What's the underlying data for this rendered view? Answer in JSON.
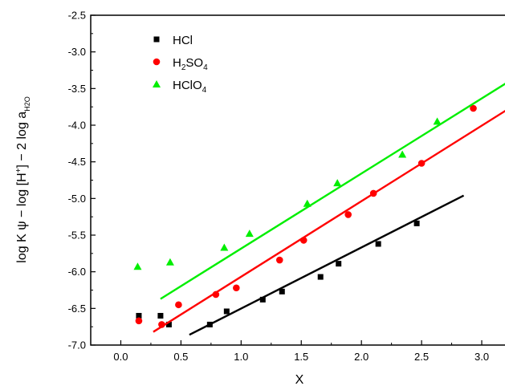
{
  "chart_data": {
    "type": "scatter",
    "xlabel": "X",
    "ylabel_parts": {
      "main": "log K ψ − log [H",
      "sup": "+",
      "mid": "] − 2 log a",
      "sub": "H2O"
    },
    "xlim": [
      -0.25,
      3.2
    ],
    "ylim": [
      -7.0,
      -2.5
    ],
    "x_ticks": [
      0.0,
      0.5,
      1.0,
      1.5,
      2.0,
      2.5,
      3.0
    ],
    "x_tick_labels": [
      "0.0",
      "0.5",
      "1.0",
      "1.5",
      "2.0",
      "2.5",
      "3.0"
    ],
    "y_ticks": [
      -7.0,
      -6.5,
      -6.0,
      -5.5,
      -5.0,
      -4.5,
      -4.0,
      -3.5,
      -3.0,
      -2.5
    ],
    "y_tick_labels": [
      "-7.0",
      "-6.5",
      "-6.0",
      "-5.5",
      "-5.0",
      "-4.5",
      "-4.0",
      "-3.5",
      "-3.0",
      "-2.5"
    ],
    "legend_position": "top-left",
    "series": [
      {
        "name": "HCl",
        "name_parts": [
          {
            "t": "HCl"
          }
        ],
        "marker": "square",
        "color": "#000000",
        "points": [
          [
            0.15,
            -6.6
          ],
          [
            0.33,
            -6.6
          ],
          [
            0.4,
            -6.72
          ],
          [
            0.74,
            -6.72
          ],
          [
            0.88,
            -6.54
          ],
          [
            1.18,
            -6.38
          ],
          [
            1.34,
            -6.27
          ],
          [
            1.66,
            -6.07
          ],
          [
            1.81,
            -5.89
          ],
          [
            2.14,
            -5.62
          ],
          [
            2.46,
            -5.34
          ]
        ],
        "fit_line": [
          [
            0.57,
            -6.86
          ],
          [
            2.85,
            -4.96
          ]
        ]
      },
      {
        "name": "H2SO4",
        "name_parts": [
          {
            "t": "H"
          },
          {
            "t": "2",
            "sub": true
          },
          {
            "t": "SO"
          },
          {
            "t": "4",
            "sub": true
          }
        ],
        "marker": "circle",
        "color": "#ff0000",
        "points": [
          [
            0.15,
            -6.67
          ],
          [
            0.34,
            -6.72
          ],
          [
            0.48,
            -6.45
          ],
          [
            0.79,
            -6.31
          ],
          [
            0.96,
            -6.22
          ],
          [
            1.32,
            -5.84
          ],
          [
            1.52,
            -5.57
          ],
          [
            1.89,
            -5.22
          ],
          [
            2.1,
            -4.93
          ],
          [
            2.5,
            -4.52
          ],
          [
            2.93,
            -3.77
          ]
        ],
        "fit_line": [
          [
            0.27,
            -6.82
          ],
          [
            3.2,
            -3.8
          ]
        ]
      },
      {
        "name": "HClO4",
        "name_parts": [
          {
            "t": "HClO"
          },
          {
            "t": "4",
            "sub": true
          }
        ],
        "marker": "triangle",
        "color": "#00ee00",
        "points": [
          [
            0.14,
            -5.93
          ],
          [
            0.41,
            -5.87
          ],
          [
            0.86,
            -5.67
          ],
          [
            1.07,
            -5.48
          ],
          [
            1.55,
            -5.07
          ],
          [
            1.8,
            -4.79
          ],
          [
            2.34,
            -4.4
          ],
          [
            2.63,
            -3.95
          ]
        ],
        "fit_line": [
          [
            0.33,
            -6.37
          ],
          [
            3.2,
            -3.43
          ]
        ]
      }
    ]
  }
}
